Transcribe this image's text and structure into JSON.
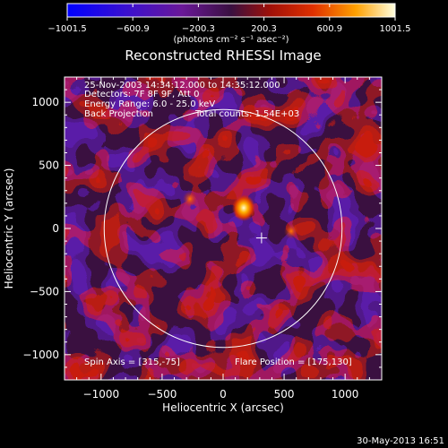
{
  "colorbar": {
    "ticks": [
      "-1001.5",
      "-600.9",
      "-200.3",
      "200.3",
      "600.9",
      "1001.5"
    ],
    "units": "(photons cm⁻² s⁻¹ asec⁻²)",
    "min": -1001.5,
    "max": 1001.5
  },
  "chart_data": {
    "type": "heatmap",
    "title": "Reconstructed RHESSI Image",
    "xlabel": "Heliocentric X (arcsec)",
    "ylabel": "Heliocentric Y (arcsec)",
    "xlim": [
      -1300,
      1300
    ],
    "ylim": [
      -1200,
      1200
    ],
    "xticks": [
      -1000,
      -500,
      0,
      500,
      1000
    ],
    "yticks": [
      -1000,
      -500,
      0,
      500,
      1000
    ],
    "xtick_labels": [
      "−1000",
      "−500",
      "0",
      "500",
      "1000"
    ],
    "ytick_labels": [
      "−1000",
      "−500",
      "0",
      "500",
      "1000"
    ],
    "solar_disk_radius": 975,
    "cross_marker": [
      315,
      -75
    ],
    "bright_source": [
      175,
      130
    ],
    "annotations": {
      "time_range": "25-Nov-2003 14:34:12.000 to 14:35:12.000",
      "detectors": "Detectors: 7F 8F 9F, Att 0",
      "energy": "Energy Range: 6.0 - 25.0 keV",
      "method": "Back Projection",
      "counts": "Total counts: 1.54E+03",
      "spin_axis": "Spin Axis = [315,-75]",
      "flare_position": "Flare Position = [175,130]"
    }
  },
  "footer": {
    "timestamp": "30-May-2013 16:51"
  }
}
